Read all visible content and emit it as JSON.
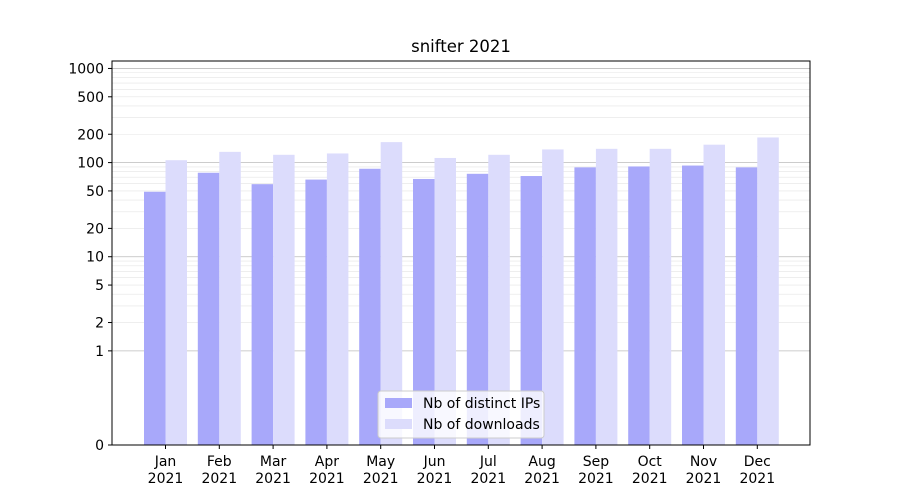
{
  "chart_data": {
    "type": "bar",
    "title": "snifter 2021",
    "xlabel": "",
    "ylabel": "",
    "yscale": "symlog",
    "ylim": [
      0,
      1200
    ],
    "yticks": [
      0,
      1,
      2,
      5,
      10,
      20,
      50,
      100,
      200,
      500,
      1000
    ],
    "ytick_labels": [
      "0",
      "1",
      "2",
      "5",
      "10",
      "20",
      "50",
      "100",
      "200",
      "500",
      "1000"
    ],
    "grid": true,
    "legend_position": "lower center",
    "categories": [
      [
        "Jan",
        "2021"
      ],
      [
        "Feb",
        "2021"
      ],
      [
        "Mar",
        "2021"
      ],
      [
        "Apr",
        "2021"
      ],
      [
        "May",
        "2021"
      ],
      [
        "Jun",
        "2021"
      ],
      [
        "Jul",
        "2021"
      ],
      [
        "Aug",
        "2021"
      ],
      [
        "Sep",
        "2021"
      ],
      [
        "Oct",
        "2021"
      ],
      [
        "Nov",
        "2021"
      ],
      [
        "Dec",
        "2021"
      ]
    ],
    "series": [
      {
        "name": "Nb of distinct IPs",
        "color": "#a8a8fa",
        "values": [
          49,
          78,
          59,
          66,
          86,
          67,
          76,
          72,
          89,
          91,
          93,
          89
        ]
      },
      {
        "name": "Nb of downloads",
        "color": "#dcdcfc",
        "values": [
          106,
          130,
          121,
          125,
          165,
          112,
          121,
          138,
          140,
          140,
          155,
          185
        ]
      }
    ]
  }
}
